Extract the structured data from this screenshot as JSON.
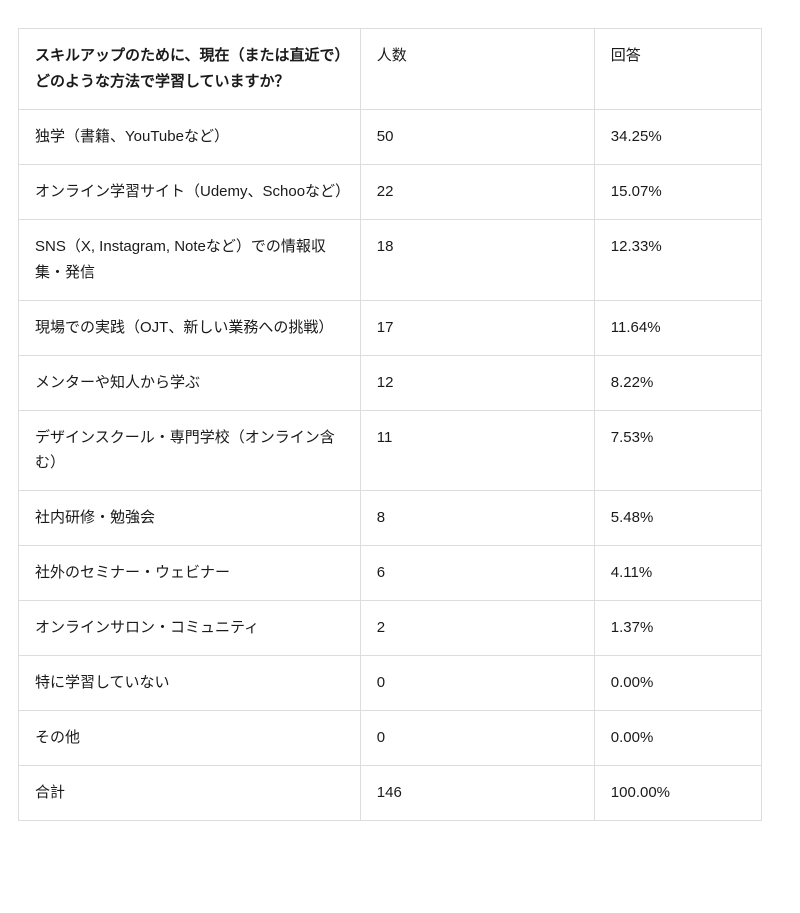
{
  "table": {
    "header": {
      "question": "スキルアップのために、現在（または直近で）どのような方法で学習していますか？",
      "count": "人数",
      "percent": "回答"
    },
    "rows": [
      {
        "label": "独学（書籍、YouTubeなど）",
        "count": "50",
        "percent": "34.25%"
      },
      {
        "label": "オンライン学習サイト（Udemy、Schooなど）",
        "count": "22",
        "percent": "15.07%"
      },
      {
        "label": "SNS（X, Instagram, Noteなど）での情報収集・発信",
        "count": "18",
        "percent": "12.33%"
      },
      {
        "label": "現場での実践（OJT、新しい業務への挑戦）",
        "count": "17",
        "percent": "11.64%"
      },
      {
        "label": "メンターや知人から学ぶ",
        "count": "12",
        "percent": "8.22%"
      },
      {
        "label": "デザインスクール・専門学校（オンライン含む）",
        "count": "11",
        "percent": "7.53%"
      },
      {
        "label": "社内研修・勉強会",
        "count": "8",
        "percent": "5.48%"
      },
      {
        "label": "社外のセミナー・ウェビナー",
        "count": "6",
        "percent": "4.11%"
      },
      {
        "label": "オンラインサロン・コミュニティ",
        "count": "2",
        "percent": "1.37%"
      },
      {
        "label": "特に学習していない",
        "count": "0",
        "percent": "0.00%"
      },
      {
        "label": "その他",
        "count": "0",
        "percent": "0.00%"
      },
      {
        "label": "合計",
        "count": "146",
        "percent": "100.00%"
      }
    ],
    "colors": {
      "border": "#dddddd",
      "text": "#1a1a1a",
      "background": "#ffffff"
    }
  }
}
